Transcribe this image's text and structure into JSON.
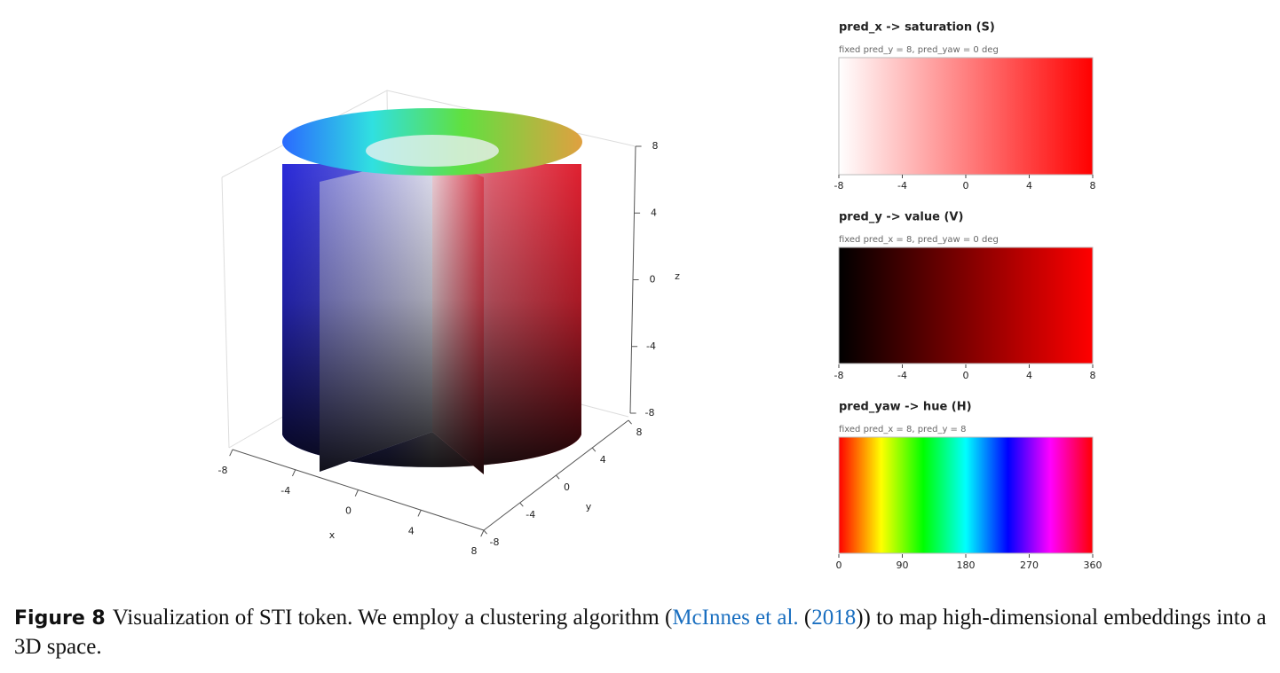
{
  "plot3d": {
    "x_label": "x",
    "y_label": "y",
    "z_label": "z",
    "xlim": [
      -8,
      8
    ],
    "ylim": [
      -8,
      8
    ],
    "zlim": [
      -8,
      8
    ],
    "xticks": [
      -8,
      -4,
      0,
      4,
      8
    ],
    "yticks": [
      -8,
      -4,
      0,
      4,
      8
    ],
    "zticks": [
      -8,
      -4,
      0,
      4,
      8
    ]
  },
  "panels": [
    {
      "title": "pred_x -> saturation (S)",
      "subtitle": "fixed pred_y = 8, pred_yaw = 0 deg",
      "lim": [
        -8,
        8
      ],
      "ticks": [
        -8,
        -4,
        0,
        4,
        8
      ]
    },
    {
      "title": "pred_y -> value (V)",
      "subtitle": "fixed pred_x = 8, pred_yaw = 0 deg",
      "lim": [
        -8,
        8
      ],
      "ticks": [
        -8,
        -4,
        0,
        4,
        8
      ]
    },
    {
      "title": "pred_yaw -> hue (H)",
      "subtitle": "fixed pred_x = 8, pred_y = 8",
      "lim": [
        0,
        360
      ],
      "ticks": [
        0,
        90,
        180,
        270,
        360
      ]
    }
  ],
  "caption": {
    "label": "Figure 8",
    "text_1": "Visualization of STI token. We employ a clustering algorithm (",
    "citation": "McInnes et al.",
    "text_2": " (",
    "year": "2018",
    "text_3": ")) to map high-dimensional embeddings into a 3D space."
  }
}
